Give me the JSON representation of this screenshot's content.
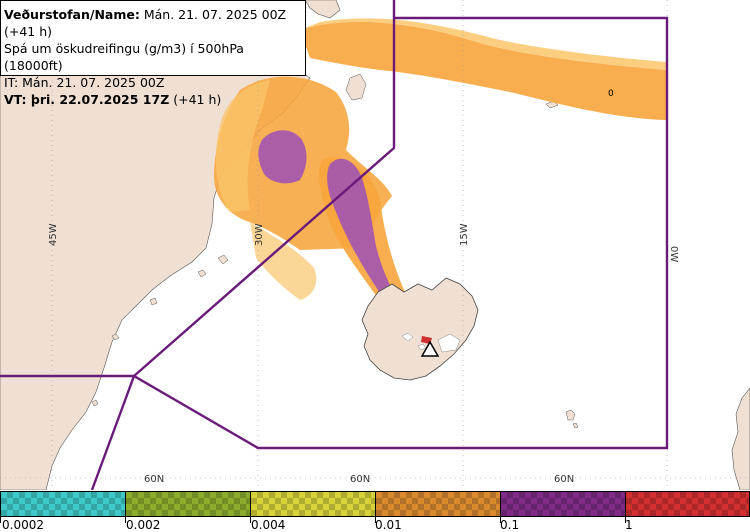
{
  "header": {
    "line1_bold": "Veðurstofan/Name:",
    "line1_rest": " Mán. 21. 07. 2025 00Z (+41 h)",
    "line2": "Spá um öskudreifingu (g/m3) í 500hPa (18000ft)",
    "line3": "IT: Mán. 21. 07. 2025 00Z",
    "line4_bold": "VT: þri. 22.07.2025 17Z",
    "line4_rest": " (+41 h)"
  },
  "map": {
    "lon_labels": [
      "45W",
      "30W",
      "15W",
      "0W"
    ],
    "lat_labels": [
      "60N",
      "60N",
      "60N"
    ],
    "marker_label": "0",
    "colors": {
      "land": "#f0e0d4",
      "sea": "#ffffff",
      "fir_line": "#6a1a78",
      "ash_orange": "#f7a53c",
      "ash_light": "#fbc56a",
      "ash_purple": "#a456b0"
    }
  },
  "legend": {
    "labels": [
      "0.0002",
      "0.002",
      "0.004",
      "0.01",
      "0.1",
      "1"
    ],
    "colors": [
      "#3fc9c9",
      "#8dab2c",
      "#d7d23a",
      "#d98a2e",
      "#7e2c86",
      "#d23030"
    ]
  }
}
